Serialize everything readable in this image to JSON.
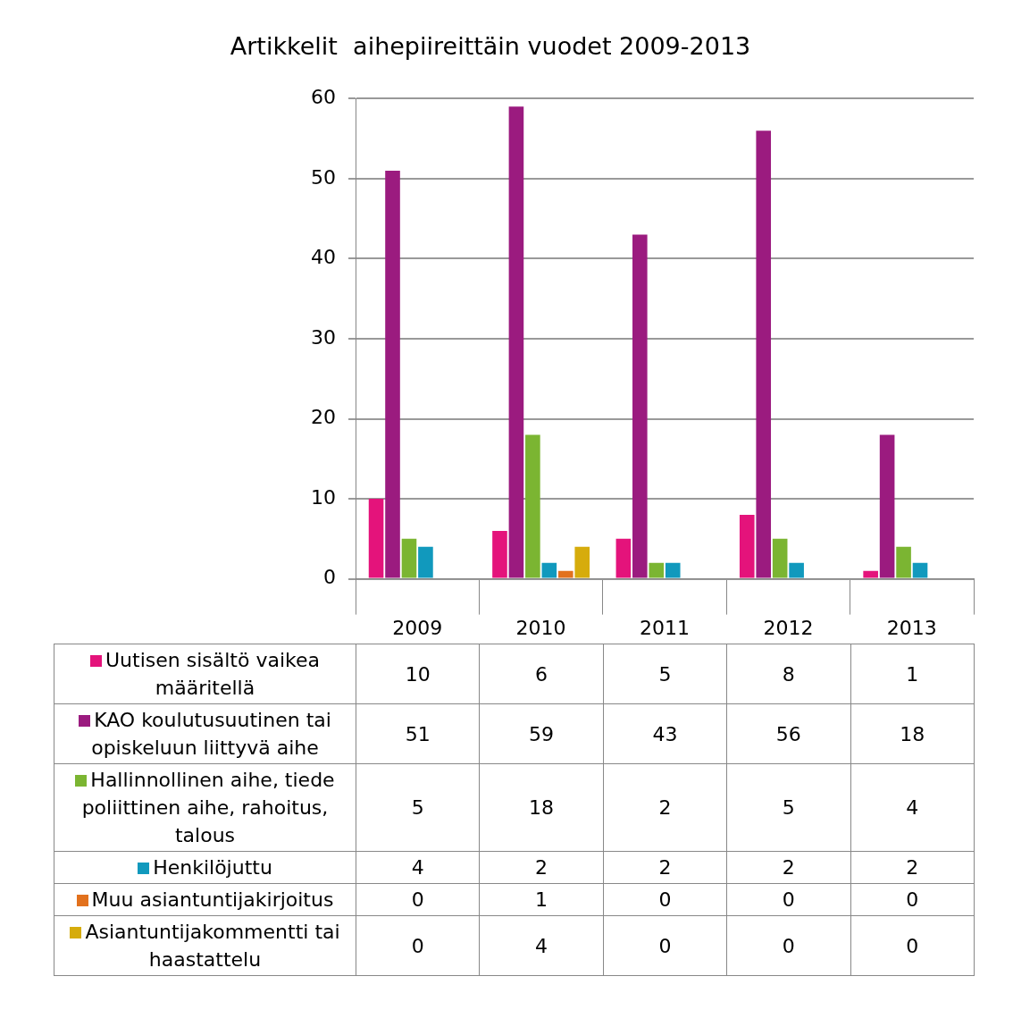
{
  "chart_data": {
    "type": "bar",
    "title": "Artikkelit  aihepiireittäin vuodet 2009-2013",
    "categories": [
      "2009",
      "2010",
      "2011",
      "2012",
      "2013"
    ],
    "series": [
      {
        "name": "Uutisen sisältö vaikea määritellä",
        "color": "#e4137b",
        "values": [
          10,
          6,
          5,
          8,
          1
        ]
      },
      {
        "name": "KAO koulutusuutinen tai opiskeluun liittyvä aihe",
        "color": "#9b1b7f",
        "values": [
          51,
          59,
          43,
          56,
          18
        ]
      },
      {
        "name": "Hallinnollinen aihe, tiede poliittinen aihe, rahoitus, talous",
        "color": "#7bb532",
        "values": [
          5,
          18,
          2,
          5,
          4
        ]
      },
      {
        "name": "Henkilöjuttu",
        "color": "#1199bd",
        "values": [
          4,
          2,
          2,
          2,
          2
        ]
      },
      {
        "name": "Muu asiantuntijakirjoitus",
        "color": "#e2711d",
        "values": [
          0,
          1,
          0,
          0,
          0
        ]
      },
      {
        "name": "Asiantuntijakommentti tai haastattelu",
        "color": "#d6ac0c",
        "values": [
          0,
          4,
          0,
          0,
          0
        ]
      }
    ],
    "ylim": [
      0,
      60
    ],
    "yticks": [
      0,
      10,
      20,
      30,
      40,
      50,
      60
    ],
    "grid": "y",
    "legend": "bottom",
    "data_labels": true
  }
}
